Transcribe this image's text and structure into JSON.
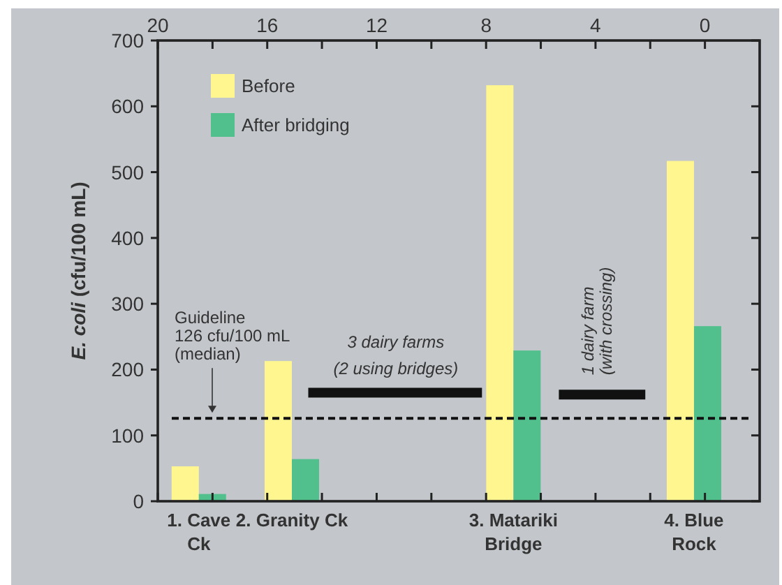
{
  "chart_data": {
    "type": "bar",
    "ylabel": "E. coli (cfu/100 mL)",
    "x": [
      18.5,
      15.1,
      7,
      0.4
    ],
    "series": [
      {
        "name": "Before",
        "color": "#fff68f",
        "values": [
          53,
          213,
          632,
          517
        ]
      },
      {
        "name": "After bridging",
        "color": "#52c08c",
        "values": [
          11,
          64,
          229,
          266
        ]
      },
      {
        "type": "line",
        "color": "#111111",
        "x": [
          14.5,
          8.15
        ],
        "values": [
          165,
          165
        ]
      },
      {
        "type": "line",
        "color": "#111111",
        "x": [
          5.34,
          2.18
        ],
        "values": [
          162,
          162
        ]
      }
    ],
    "ylim": [
      0,
      700
    ],
    "yticks": [
      0,
      100,
      200,
      300,
      400,
      500,
      600,
      700
    ],
    "xlim": [
      20,
      -2
    ],
    "xticks": [
      20,
      {
        "value": 18,
        "label": null
      },
      16,
      {
        "value": 14,
        "label": null
      },
      12,
      {
        "value": 10,
        "label": null
      },
      8,
      {
        "value": 6,
        "label": null
      },
      4,
      {
        "value": 2,
        "label": null
      },
      0
    ],
    "ref_lines": [
      {
        "axis": "y",
        "value": 126,
        "label": "Guideline\n126 cfu/100 mL\n(median)",
        "line_style": "dashed",
        "color": "#111111"
      }
    ],
    "annotations": [
      {
        "text": "1. Cave\nCk",
        "x": 18.5,
        "y": 0
      },
      {
        "text": "2. Granity Ck",
        "x": 15.1,
        "y": 0
      },
      {
        "text": "3. Matariki\nBridge",
        "x": 7,
        "y": 0
      },
      {
        "text": "4. Blue\nRock",
        "x": 0.4,
        "y": 0
      },
      {
        "text": "3 dairy farms\n(2 using bridges)",
        "x": 11.3,
        "y": 165
      },
      {
        "text": "1 dairy farm\n(with crossing)",
        "x": 3.76,
        "y": 162
      }
    ],
    "legend": "top left"
  }
}
